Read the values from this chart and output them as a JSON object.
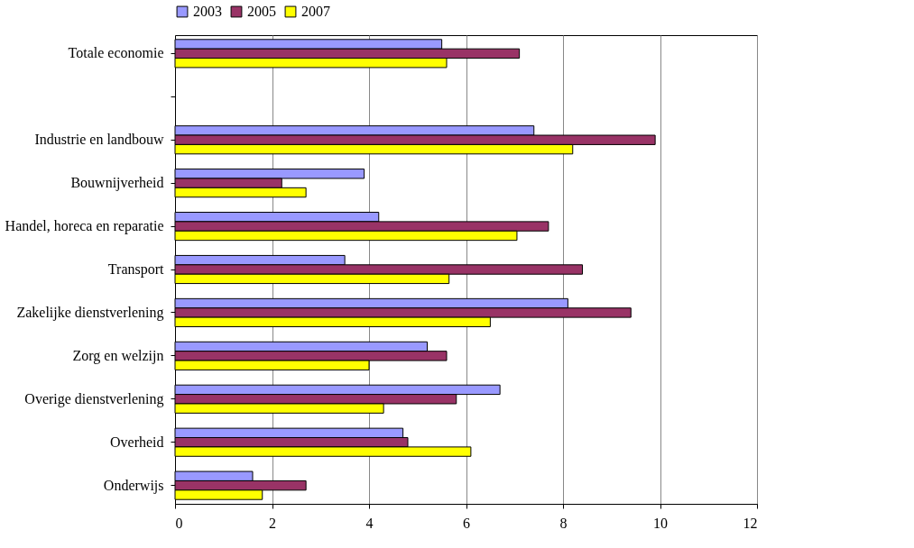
{
  "chart_data": {
    "type": "bar",
    "orientation": "horizontal",
    "categories": [
      "Totale economie",
      null,
      "Industrie en landbouw",
      "Bouwnijverheid",
      "Handel, horeca en reparatie",
      "Transport",
      "Zakelijke dienstverlening",
      "Zorg en welzijn",
      "Overige dienstverlening",
      "Overheid",
      "Onderwijs"
    ],
    "series": [
      {
        "name": "2003",
        "color": "#9999ff",
        "values": [
          5.5,
          null,
          7.4,
          3.9,
          4.2,
          3.5,
          8.1,
          5.2,
          6.7,
          4.7,
          1.6
        ]
      },
      {
        "name": "2005",
        "color": "#993366",
        "values": [
          7.1,
          null,
          9.9,
          2.2,
          7.7,
          8.4,
          9.4,
          5.6,
          5.8,
          4.8,
          2.7
        ]
      },
      {
        "name": "2007",
        "color": "#ffff00",
        "values": [
          5.6,
          null,
          8.2,
          2.7,
          7.05,
          5.65,
          6.5,
          4.0,
          4.3,
          6.1,
          1.8
        ]
      }
    ],
    "xlim": [
      0,
      12
    ],
    "xticks": [
      0,
      2,
      4,
      6,
      8,
      10,
      12
    ],
    "grid": "x",
    "legend": "top"
  }
}
